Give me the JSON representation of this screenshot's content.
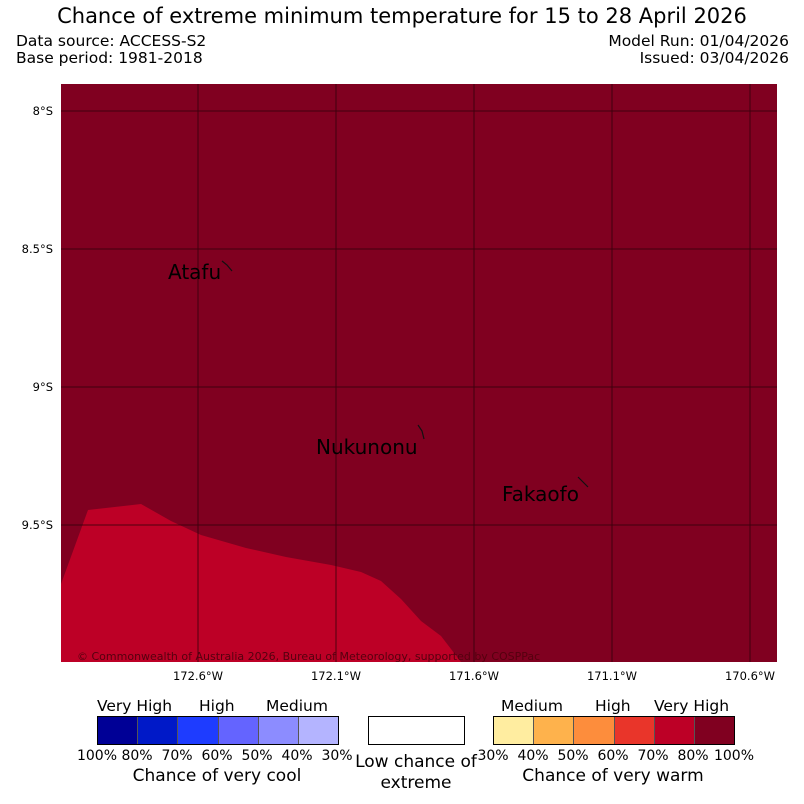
{
  "title": "Chance of extreme minimum temperature for 15 to 28 April 2026",
  "meta": {
    "data_source": "Data source: ACCESS-S2",
    "base_period": "Base period: 1981-2018",
    "model_run": "Model Run: 01/04/2026",
    "issued": "Issued: 03/04/2026"
  },
  "map": {
    "copyright": "© Commonwealth of Australia 2026, Bureau of Meteorology, supported by COSPPac",
    "lat_labels": [
      "8°S",
      "8.5°S",
      "9°S",
      "9.5°S"
    ],
    "lon_labels": [
      "172.6°W",
      "172.1°W",
      "171.6°W",
      "171.1°W",
      "170.6°W"
    ],
    "places": [
      "Atafu",
      "Nukunonu",
      "Fakaofo"
    ],
    "regions": [
      {
        "category": "Very High warm (80%-100%)",
        "color": "#800020"
      },
      {
        "category": "High warm (70%-80%)",
        "color": "#bd0026"
      }
    ]
  },
  "legend": {
    "cool": {
      "group_labels": [
        "Very High",
        "High",
        "Medium"
      ],
      "colors": [
        "#000096",
        "#0019c8",
        "#1e3cff",
        "#6464ff",
        "#8c8cff",
        "#b4b4ff"
      ],
      "ticks": [
        "100%",
        "80%",
        "70%",
        "60%",
        "50%",
        "40%",
        "30%"
      ],
      "caption": "Chance of very cool"
    },
    "neutral": {
      "caption": "Low chance of extreme"
    },
    "warm": {
      "group_labels": [
        "Medium",
        "High",
        "Very High"
      ],
      "colors": [
        "#ffeda0",
        "#feb24c",
        "#fd8d3c",
        "#e9352a",
        "#bd0026",
        "#800020"
      ],
      "ticks": [
        "30%",
        "40%",
        "50%",
        "60%",
        "70%",
        "80%",
        "100%"
      ],
      "caption": "Chance of very warm"
    }
  }
}
